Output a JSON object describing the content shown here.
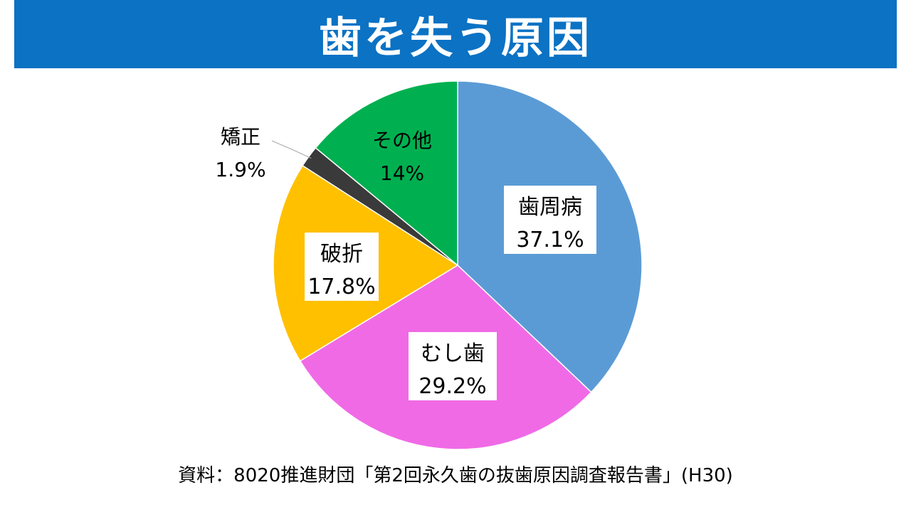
{
  "title": "歯を失う原因",
  "source": "資料：8020推進財団「第2回永久歯の抜歯原因調査報告書」(H30)",
  "chart_data": {
    "type": "pie",
    "title": "歯を失う原因",
    "start_angle_deg": 0,
    "direction": "clockwise",
    "slices": [
      {
        "label": "歯周病",
        "value": 37.1,
        "value_label": "37.1%",
        "color": "#5b9bd5",
        "label_box": true
      },
      {
        "label": "むし歯",
        "value": 29.2,
        "value_label": "29.2%",
        "color": "#f06ae6",
        "label_box": true
      },
      {
        "label": "破折",
        "value": 17.8,
        "value_label": "17.8%",
        "color": "#ffc000",
        "label_box": true
      },
      {
        "label": "矯正",
        "value": 1.9,
        "value_label": "1.9%",
        "color": "#3a3a3a",
        "label_box": false,
        "label_outside": true
      },
      {
        "label": "その他",
        "value": 14,
        "value_label": "14%",
        "color": "#00b050",
        "label_box": false
      }
    ]
  }
}
